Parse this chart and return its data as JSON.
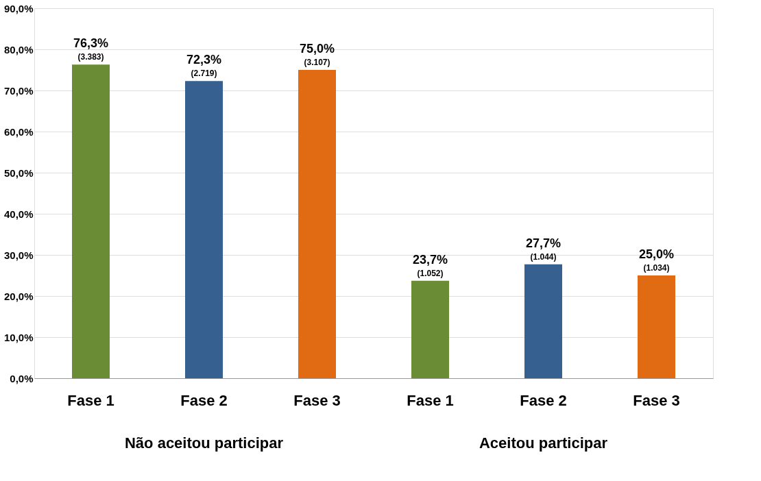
{
  "chart_data": {
    "type": "bar",
    "categories": [
      "Fase 1",
      "Fase 2",
      "Fase 3",
      "Fase 1",
      "Fase 2",
      "Fase 3"
    ],
    "values": [
      76.3,
      72.3,
      75.0,
      23.7,
      27.7,
      25.0
    ],
    "colors": [
      "#6a8c35",
      "#36608f",
      "#e06b12",
      "#6a8c35",
      "#36608f",
      "#e06b12"
    ],
    "value_labels": [
      "76,3%\n(3.383)",
      "72,3%\n(2.719)",
      "75,0%\n(3.107)",
      "23,7%\n(1.052)",
      "27,7%\n(1.044)",
      "25,0%\n(1.034)"
    ],
    "annotations": [
      "Não aceitou participar",
      "Aceitou participar"
    ],
    "ylim": [
      0,
      90
    ],
    "yticks": [
      {
        "value": 0,
        "label": "0,0%"
      },
      {
        "value": 10,
        "label": "10,0%"
      },
      {
        "value": 20,
        "label": "20,0%"
      },
      {
        "value": 30,
        "label": "30,0%"
      },
      {
        "value": 40,
        "label": "40,0%"
      },
      {
        "value": 50,
        "label": "50,0%"
      },
      {
        "value": 60,
        "label": "60,0%"
      },
      {
        "value": 70,
        "label": "70,0%"
      },
      {
        "value": 80,
        "label": "80,0%"
      },
      {
        "value": 90,
        "label": "90,0%"
      }
    ],
    "grid": "y"
  }
}
